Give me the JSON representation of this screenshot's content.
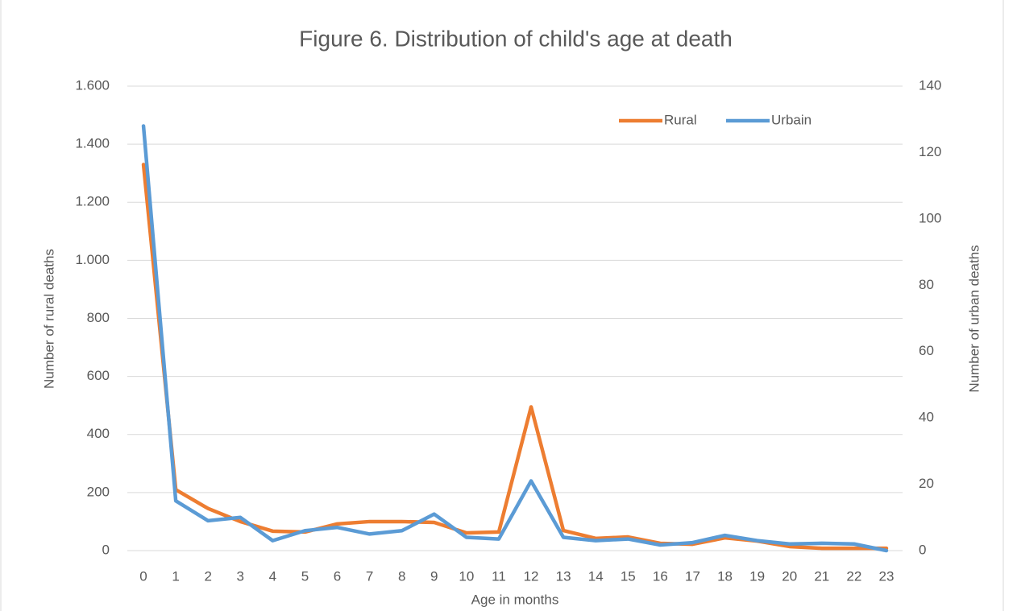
{
  "chart_data": {
    "type": "line",
    "title": "Figure 6. Distribution of child's age at death",
    "x_label": "Age in months",
    "y_label": "Number of rural deaths",
    "y2_label": "Number of urban deaths",
    "categories": [
      "0",
      "1",
      "2",
      "3",
      "4",
      "5",
      "6",
      "7",
      "8",
      "9",
      "10",
      "11",
      "12",
      "13",
      "14",
      "15",
      "16",
      "17",
      "18",
      "19",
      "20",
      "21",
      "22",
      "23"
    ],
    "series": [
      {
        "name": "Rural",
        "color": "#ed7d31",
        "values": [
          1330,
          210,
          145,
          100,
          67,
          64,
          92,
          100,
          100,
          97,
          61,
          64,
          495,
          69,
          42,
          47,
          25,
          22,
          44,
          33,
          14,
          8,
          8,
          8
        ]
      },
      {
        "name": "Urbain",
        "color": "#5b9bd5",
        "axis": "y2",
        "values": [
          128,
          15,
          9,
          10,
          3,
          6,
          7,
          5,
          6,
          11,
          4,
          3.5,
          21,
          4,
          3,
          3.5,
          1.7,
          2.4,
          4.6,
          3,
          2,
          2.2,
          2,
          0
        ]
      }
    ],
    "ylim": [
      0,
      1600
    ],
    "yticks": [
      0,
      200,
      400,
      600,
      800,
      {
        "value": 1000,
        "label": "1.000"
      },
      {
        "value": 1200,
        "label": "1.200"
      },
      {
        "value": 1400,
        "label": "1.400"
      },
      {
        "value": 1600,
        "label": "1.600"
      }
    ],
    "y2lim": [
      0,
      140
    ],
    "y2ticks": [
      0,
      20,
      40,
      60,
      80,
      100,
      120,
      140
    ],
    "grid": true,
    "legend": "top-right"
  }
}
